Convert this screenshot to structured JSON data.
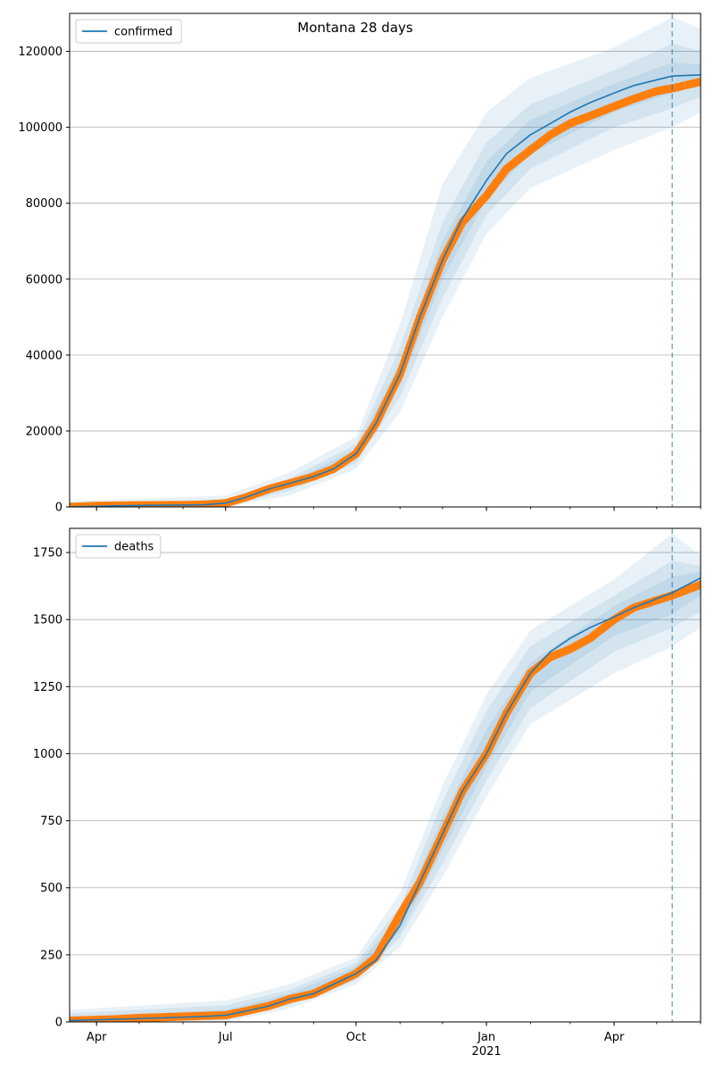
{
  "figure": {
    "title": "Montana 28 days"
  },
  "chart_data": [
    {
      "type": "line",
      "series": [
        {
          "name": "confirmed",
          "role": "model median",
          "color": "#1f77b4"
        },
        {
          "role": "observed",
          "color": "#ff7f0e"
        }
      ],
      "x_ticks": [
        {
          "date": "2020-04-01",
          "label": "Apr",
          "sub": ""
        },
        {
          "date": "2020-07-01",
          "label": "Jul",
          "sub": ""
        },
        {
          "date": "2020-10-01",
          "label": "Oct",
          "sub": ""
        },
        {
          "date": "2021-01-01",
          "label": "Jan",
          "sub": "2021"
        },
        {
          "date": "2021-04-01",
          "label": "Apr",
          "sub": ""
        }
      ],
      "xlim": [
        "2020-03-13",
        "2021-06-01"
      ],
      "ylim": [
        0,
        130000
      ],
      "y_ticks": [
        0,
        20000,
        40000,
        60000,
        80000,
        100000,
        120000
      ],
      "y_tick_labels": [
        "0",
        "20000",
        "40000",
        "60000",
        "80000",
        "100000",
        "120000"
      ],
      "grid": "horizontal",
      "legend": "top-left",
      "forecast_start": "2021-05-12",
      "median": [
        [
          "2020-03-13",
          0
        ],
        [
          "2020-04-15",
          300
        ],
        [
          "2020-05-15",
          450
        ],
        [
          "2020-06-15",
          550
        ],
        [
          "2020-07-01",
          1000
        ],
        [
          "2020-07-15",
          2500
        ],
        [
          "2020-08-01",
          4800
        ],
        [
          "2020-08-15",
          6200
        ],
        [
          "2020-09-01",
          8000
        ],
        [
          "2020-09-15",
          10000
        ],
        [
          "2020-10-01",
          14000
        ],
        [
          "2020-10-15",
          22000
        ],
        [
          "2020-11-01",
          35000
        ],
        [
          "2020-11-15",
          50000
        ],
        [
          "2020-12-01",
          65000
        ],
        [
          "2020-12-15",
          76000
        ],
        [
          "2021-01-01",
          86000
        ],
        [
          "2021-01-15",
          93000
        ],
        [
          "2021-02-01",
          98000
        ],
        [
          "2021-02-15",
          101000
        ],
        [
          "2021-03-01",
          104000
        ],
        [
          "2021-03-15",
          106500
        ],
        [
          "2021-04-01",
          109000
        ],
        [
          "2021-04-15",
          111000
        ],
        [
          "2021-05-12",
          113500
        ],
        [
          "2021-06-01",
          113800
        ]
      ],
      "observed": [
        [
          "2020-03-13",
          0
        ],
        [
          "2020-04-01",
          300
        ],
        [
          "2020-05-01",
          450
        ],
        [
          "2020-06-01",
          500
        ],
        [
          "2020-06-15",
          600
        ],
        [
          "2020-07-01",
          1000
        ],
        [
          "2020-07-15",
          2500
        ],
        [
          "2020-08-01",
          4800
        ],
        [
          "2020-08-15",
          6200
        ],
        [
          "2020-09-01",
          8000
        ],
        [
          "2020-09-15",
          10000
        ],
        [
          "2020-10-01",
          14000
        ],
        [
          "2020-10-15",
          22000
        ],
        [
          "2020-11-01",
          35000
        ],
        [
          "2020-11-15",
          50000
        ],
        [
          "2020-12-01",
          65000
        ],
        [
          "2020-12-15",
          75000
        ],
        [
          "2021-01-01",
          82000
        ],
        [
          "2021-01-15",
          89000
        ],
        [
          "2021-02-01",
          94000
        ],
        [
          "2021-02-15",
          98000
        ],
        [
          "2021-03-01",
          101000
        ],
        [
          "2021-03-15",
          103000
        ],
        [
          "2021-04-01",
          105500
        ],
        [
          "2021-04-15",
          107500
        ],
        [
          "2021-05-01",
          109500
        ],
        [
          "2021-05-15",
          110500
        ],
        [
          "2021-06-01",
          112000
        ]
      ],
      "bands": [
        {
          "opacity": 0.1,
          "lower": [
            [
              "2020-03-13",
              0
            ],
            [
              "2020-07-01",
              0
            ],
            [
              "2020-08-15",
              3000
            ],
            [
              "2020-10-01",
              10000
            ],
            [
              "2020-11-01",
              25000
            ],
            [
              "2020-12-01",
              50000
            ],
            [
              "2021-01-01",
              72000
            ],
            [
              "2021-02-01",
              84000
            ],
            [
              "2021-04-01",
              94000
            ],
            [
              "2021-05-12",
              100000
            ],
            [
              "2021-06-01",
              104000
            ]
          ],
          "upper": [
            [
              "2020-03-13",
              1500
            ],
            [
              "2020-07-01",
              3000
            ],
            [
              "2020-08-15",
              9000
            ],
            [
              "2020-10-01",
              18500
            ],
            [
              "2020-11-01",
              48000
            ],
            [
              "2020-12-01",
              85000
            ],
            [
              "2021-01-01",
              104000
            ],
            [
              "2021-02-01",
              113000
            ],
            [
              "2021-04-01",
              121000
            ],
            [
              "2021-05-12",
              129000
            ],
            [
              "2021-06-01",
              126000
            ]
          ]
        },
        {
          "opacity": 0.1,
          "lower": [
            [
              "2020-03-13",
              0
            ],
            [
              "2020-07-01",
              300
            ],
            [
              "2020-08-15",
              4200
            ],
            [
              "2020-10-01",
              11500
            ],
            [
              "2020-11-01",
              29000
            ],
            [
              "2020-12-01",
              55000
            ],
            [
              "2021-01-01",
              77000
            ],
            [
              "2021-02-01",
              89000
            ],
            [
              "2021-04-01",
              100000
            ],
            [
              "2021-05-12",
              105000
            ],
            [
              "2021-06-01",
              108000
            ]
          ],
          "upper": [
            [
              "2020-03-13",
              900
            ],
            [
              "2020-07-01",
              2000
            ],
            [
              "2020-08-15",
              7500
            ],
            [
              "2020-10-01",
              16500
            ],
            [
              "2020-11-01",
              42000
            ],
            [
              "2020-12-01",
              75000
            ],
            [
              "2021-01-01",
              96000
            ],
            [
              "2021-02-01",
              106000
            ],
            [
              "2021-04-01",
              115000
            ],
            [
              "2021-05-12",
              122000
            ],
            [
              "2021-06-01",
              120000
            ]
          ]
        },
        {
          "opacity": 0.1,
          "lower": [
            [
              "2020-03-13",
              0
            ],
            [
              "2020-07-01",
              600
            ],
            [
              "2020-08-15",
              5200
            ],
            [
              "2020-10-01",
              12800
            ],
            [
              "2020-11-01",
              32000
            ],
            [
              "2020-12-01",
              60000
            ],
            [
              "2021-01-01",
              81000
            ],
            [
              "2021-02-01",
              93000
            ],
            [
              "2021-04-01",
              104000
            ],
            [
              "2021-05-12",
              109000
            ],
            [
              "2021-06-01",
              111000
            ]
          ],
          "upper": [
            [
              "2020-03-13",
              500
            ],
            [
              "2020-07-01",
              1500
            ],
            [
              "2020-08-15",
              6500
            ],
            [
              "2020-10-01",
              15200
            ],
            [
              "2020-11-01",
              38000
            ],
            [
              "2020-12-01",
              70000
            ],
            [
              "2021-01-01",
              91000
            ],
            [
              "2021-02-01",
              102000
            ],
            [
              "2021-04-01",
              111500
            ],
            [
              "2021-05-12",
              117000
            ],
            [
              "2021-06-01",
              116500
            ]
          ]
        }
      ]
    },
    {
      "type": "line",
      "series": [
        {
          "name": "deaths",
          "role": "model median",
          "color": "#1f77b4"
        },
        {
          "role": "observed",
          "color": "#ff7f0e"
        }
      ],
      "x_ticks": [
        {
          "date": "2020-04-01",
          "label": "Apr",
          "sub": ""
        },
        {
          "date": "2020-07-01",
          "label": "Jul",
          "sub": ""
        },
        {
          "date": "2020-10-01",
          "label": "Oct",
          "sub": ""
        },
        {
          "date": "2021-01-01",
          "label": "Jan",
          "sub": "2021"
        },
        {
          "date": "2021-04-01",
          "label": "Apr",
          "sub": ""
        }
      ],
      "xlim": [
        "2020-03-13",
        "2021-06-01"
      ],
      "ylim": [
        0,
        1840
      ],
      "y_ticks": [
        0,
        250,
        500,
        750,
        1000,
        1250,
        1500,
        1750
      ],
      "y_tick_labels": [
        "0",
        "250",
        "500",
        "750",
        "1000",
        "1250",
        "1500",
        "1750"
      ],
      "grid": "horizontal",
      "legend": "top-left",
      "forecast_start": "2021-05-12",
      "median": [
        [
          "2020-03-13",
          5
        ],
        [
          "2020-04-15",
          10
        ],
        [
          "2020-05-15",
          15
        ],
        [
          "2020-06-15",
          20
        ],
        [
          "2020-07-01",
          25
        ],
        [
          "2020-07-15",
          40
        ],
        [
          "2020-08-01",
          60
        ],
        [
          "2020-08-15",
          85
        ],
        [
          "2020-09-01",
          105
        ],
        [
          "2020-09-15",
          140
        ],
        [
          "2020-10-01",
          180
        ],
        [
          "2020-10-15",
          230
        ],
        [
          "2020-11-01",
          360
        ],
        [
          "2020-11-15",
          520
        ],
        [
          "2020-12-01",
          700
        ],
        [
          "2020-12-15",
          860
        ],
        [
          "2021-01-01",
          1000
        ],
        [
          "2021-01-15",
          1150
        ],
        [
          "2021-02-01",
          1300
        ],
        [
          "2021-02-15",
          1380
        ],
        [
          "2021-03-01",
          1430
        ],
        [
          "2021-03-15",
          1470
        ],
        [
          "2021-04-01",
          1510
        ],
        [
          "2021-04-15",
          1545
        ],
        [
          "2021-05-12",
          1600
        ],
        [
          "2021-06-01",
          1655
        ]
      ],
      "observed": [
        [
          "2020-03-13",
          5
        ],
        [
          "2020-04-15",
          10
        ],
        [
          "2020-05-01",
          15
        ],
        [
          "2020-06-01",
          20
        ],
        [
          "2020-07-01",
          25
        ],
        [
          "2020-07-15",
          40
        ],
        [
          "2020-08-01",
          60
        ],
        [
          "2020-08-15",
          85
        ],
        [
          "2020-09-01",
          105
        ],
        [
          "2020-09-15",
          140
        ],
        [
          "2020-10-01",
          180
        ],
        [
          "2020-10-15",
          240
        ],
        [
          "2020-11-01",
          400
        ],
        [
          "2020-11-15",
          520
        ],
        [
          "2020-12-01",
          700
        ],
        [
          "2020-12-15",
          860
        ],
        [
          "2021-01-01",
          1000
        ],
        [
          "2021-01-15",
          1150
        ],
        [
          "2021-02-01",
          1300
        ],
        [
          "2021-02-15",
          1360
        ],
        [
          "2021-03-01",
          1390
        ],
        [
          "2021-03-15",
          1430
        ],
        [
          "2021-04-01",
          1500
        ],
        [
          "2021-04-15",
          1545
        ],
        [
          "2021-05-12",
          1590
        ],
        [
          "2021-06-01",
          1630
        ]
      ],
      "bands": [
        {
          "opacity": 0.1,
          "lower": [
            [
              "2020-03-13",
              0
            ],
            [
              "2020-07-01",
              0
            ],
            [
              "2020-08-15",
              50
            ],
            [
              "2020-10-01",
              140
            ],
            [
              "2020-11-01",
              280
            ],
            [
              "2020-12-01",
              540
            ],
            [
              "2021-01-01",
              840
            ],
            [
              "2021-02-01",
              1110
            ],
            [
              "2021-04-01",
              1300
            ],
            [
              "2021-05-12",
              1400
            ],
            [
              "2021-06-01",
              1470
            ]
          ],
          "upper": [
            [
              "2020-03-13",
              45
            ],
            [
              "2020-07-01",
              80
            ],
            [
              "2020-08-15",
              140
            ],
            [
              "2020-10-01",
              240
            ],
            [
              "2020-11-01",
              480
            ],
            [
              "2020-12-01",
              880
            ],
            [
              "2021-01-01",
              1220
            ],
            [
              "2021-02-01",
              1460
            ],
            [
              "2021-04-01",
              1650
            ],
            [
              "2021-05-12",
              1820
            ],
            [
              "2021-06-01",
              1740
            ]
          ]
        },
        {
          "opacity": 0.1,
          "lower": [
            [
              "2020-03-13",
              0
            ],
            [
              "2020-07-01",
              8
            ],
            [
              "2020-08-15",
              62
            ],
            [
              "2020-10-01",
              155
            ],
            [
              "2020-11-01",
              315
            ],
            [
              "2020-12-01",
              590
            ],
            [
              "2021-01-01",
              900
            ],
            [
              "2021-02-01",
              1170
            ],
            [
              "2021-04-01",
              1380
            ],
            [
              "2021-05-12",
              1470
            ],
            [
              "2021-06-01",
              1530
            ]
          ],
          "upper": [
            [
              "2020-03-13",
              32
            ],
            [
              "2020-07-01",
              62
            ],
            [
              "2020-08-15",
              120
            ],
            [
              "2020-10-01",
              220
            ],
            [
              "2020-11-01",
              430
            ],
            [
              "2020-12-01",
              820
            ],
            [
              "2021-01-01",
              1160
            ],
            [
              "2021-02-01",
              1400
            ],
            [
              "2021-04-01",
              1590
            ],
            [
              "2021-05-12",
              1720
            ],
            [
              "2021-06-01",
              1700
            ]
          ]
        },
        {
          "opacity": 0.1,
          "lower": [
            [
              "2020-03-13",
              0
            ],
            [
              "2020-07-01",
              15
            ],
            [
              "2020-08-15",
              72
            ],
            [
              "2020-10-01",
              165
            ],
            [
              "2020-11-01",
              335
            ],
            [
              "2020-12-01",
              640
            ],
            [
              "2021-01-01",
              950
            ],
            [
              "2021-02-01",
              1230
            ],
            [
              "2021-04-01",
              1440
            ],
            [
              "2021-05-12",
              1520
            ],
            [
              "2021-06-01",
              1590
            ]
          ],
          "upper": [
            [
              "2020-03-13",
              18
            ],
            [
              "2020-07-01",
              45
            ],
            [
              "2020-08-15",
              105
            ],
            [
              "2020-10-01",
              205
            ],
            [
              "2020-11-01",
              395
            ],
            [
              "2020-12-01",
              760
            ],
            [
              "2021-01-01",
              1090
            ],
            [
              "2021-02-01",
              1340
            ],
            [
              "2021-04-01",
              1550
            ],
            [
              "2021-05-12",
              1660
            ],
            [
              "2021-06-01",
              1680
            ]
          ]
        }
      ]
    }
  ]
}
